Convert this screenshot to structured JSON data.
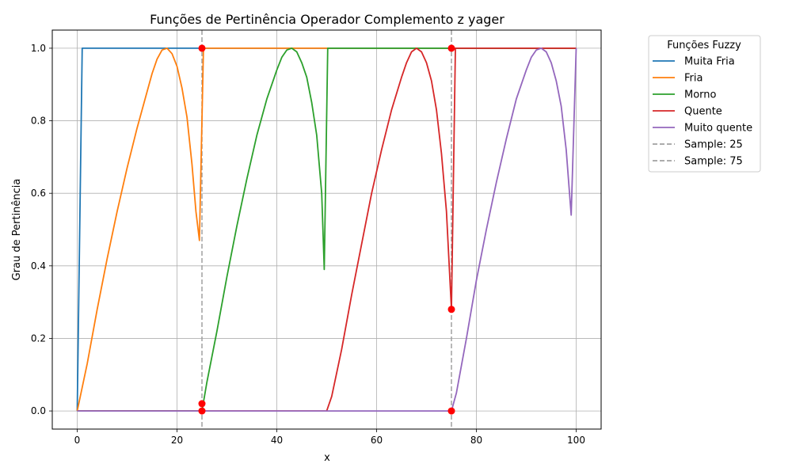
{
  "chart_data": {
    "type": "line",
    "title": "Funções de Pertinência Operador Complemento z yager",
    "xlabel": "x",
    "ylabel": "Grau de Pertinência",
    "xlim": [
      -5,
      105
    ],
    "ylim": [
      -0.05,
      1.05
    ],
    "xticks": [
      0,
      20,
      40,
      60,
      80,
      100
    ],
    "yticks": [
      0.0,
      0.2,
      0.4,
      0.6,
      0.8,
      1.0
    ],
    "xtick_labels": [
      "0",
      "20",
      "40",
      "60",
      "80",
      "100"
    ],
    "ytick_labels": [
      "0.0",
      "0.2",
      "0.4",
      "0.6",
      "0.8",
      "1.0"
    ],
    "grid": true,
    "legend": {
      "title": "Funções Fuzzy",
      "placement": "outside-top-right"
    },
    "series": [
      {
        "name": "Muita Fria",
        "color": "#1f77b4",
        "x": [
          0,
          1,
          25,
          100
        ],
        "y": [
          0,
          1,
          1,
          1
        ]
      },
      {
        "name": "Fria",
        "color": "#ff7f0e",
        "x": [
          0,
          2,
          4,
          6,
          8,
          10,
          12,
          14,
          15,
          16,
          17,
          18,
          19,
          20,
          21,
          22,
          23,
          23.8,
          24.5,
          25.3,
          26,
          100
        ],
        "y": [
          0,
          0.13,
          0.28,
          0.42,
          0.55,
          0.67,
          0.78,
          0.88,
          0.93,
          0.97,
          0.995,
          1.0,
          0.985,
          0.95,
          0.89,
          0.81,
          0.68,
          0.55,
          0.47,
          1.0,
          1.0,
          1.0
        ]
      },
      {
        "name": "Morno",
        "color": "#2ca02c",
        "x": [
          0,
          25,
          26,
          28,
          30,
          32,
          34,
          36,
          38,
          40,
          41,
          42,
          43,
          44,
          45,
          46,
          47,
          48,
          49,
          49.5,
          50.2,
          51,
          100
        ],
        "y": [
          0,
          0,
          0.08,
          0.22,
          0.37,
          0.51,
          0.64,
          0.76,
          0.86,
          0.94,
          0.975,
          0.995,
          1.0,
          0.99,
          0.96,
          0.92,
          0.85,
          0.76,
          0.6,
          0.39,
          1.0,
          1.0,
          1.0
        ]
      },
      {
        "name": "Quente",
        "color": "#d62728",
        "x": [
          0,
          50,
          51,
          53,
          55,
          57,
          59,
          61,
          63,
          65,
          66,
          67,
          68,
          69,
          70,
          71,
          72,
          73,
          74,
          75,
          75.8,
          76,
          100
        ],
        "y": [
          0,
          0,
          0.04,
          0.17,
          0.32,
          0.46,
          0.6,
          0.72,
          0.83,
          0.92,
          0.96,
          0.99,
          1.0,
          0.99,
          0.96,
          0.91,
          0.83,
          0.71,
          0.55,
          0.28,
          1.0,
          1.0,
          1.0
        ]
      },
      {
        "name": "Muito quente",
        "color": "#9467bd",
        "x": [
          0,
          75,
          76,
          78,
          80,
          82,
          84,
          86,
          88,
          90,
          91,
          92,
          93,
          94,
          95,
          96,
          97,
          98,
          99,
          100
        ],
        "y": [
          0,
          0,
          0.05,
          0.2,
          0.36,
          0.5,
          0.63,
          0.75,
          0.86,
          0.94,
          0.975,
          0.995,
          1.0,
          0.99,
          0.96,
          0.91,
          0.84,
          0.72,
          0.54,
          1.0
        ]
      }
    ],
    "samples": [
      {
        "name": "Sample: 25",
        "x": 25,
        "color": "#a0a0a0"
      },
      {
        "name": "Sample: 75",
        "x": 75,
        "color": "#a0a0a0"
      }
    ],
    "markers": {
      "color": "#ff0000",
      "points": [
        {
          "x": 25,
          "y": 1.0
        },
        {
          "x": 25,
          "y": 0.02
        },
        {
          "x": 25,
          "y": 0.0
        },
        {
          "x": 75,
          "y": 1.0
        },
        {
          "x": 75,
          "y": 0.28
        },
        {
          "x": 75,
          "y": 0.0
        }
      ]
    }
  }
}
